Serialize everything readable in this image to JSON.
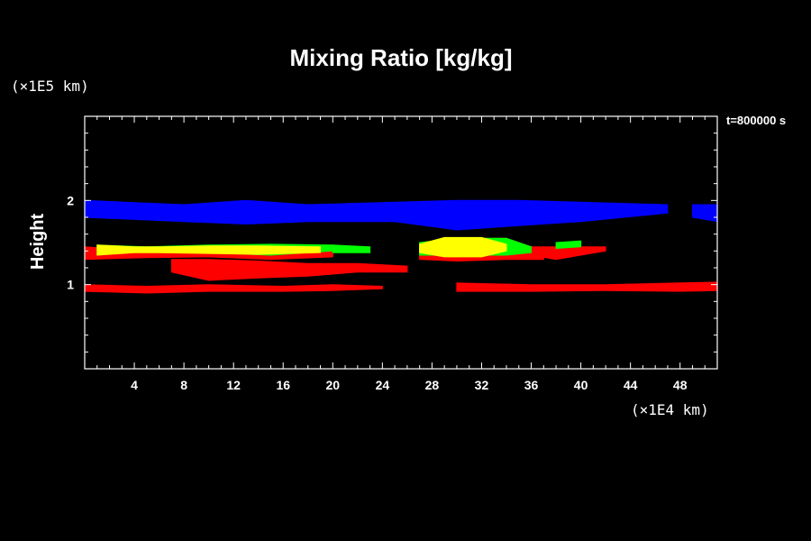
{
  "chart_data": {
    "type": "heatmap",
    "title": "Mixing Ratio [kg/kg]",
    "time_label": "t=800000 s",
    "ylabel": "Height",
    "y_unit": "(×1E5 km)",
    "x_unit": "(×1E4 km)",
    "xlim": [
      0,
      51
    ],
    "ylim": [
      0,
      3
    ],
    "x_ticks": [
      "4",
      "8",
      "12",
      "16",
      "20",
      "24",
      "28",
      "32",
      "36",
      "40",
      "44",
      "48"
    ],
    "y_ticks": [
      "1",
      "2"
    ],
    "colors": {
      "background": "#000000",
      "axes": "#ffffff",
      "blue": "#0000ff",
      "red": "#ff0000",
      "green": "#00ff00",
      "yellow": "#ffff00"
    },
    "series": [
      {
        "color": "blue",
        "regions": [
          {
            "x": [
              0,
              8,
              13,
              18,
              25,
              30,
              35,
              40,
              47
            ],
            "top": [
              2.0,
              1.95,
              2.0,
              1.95,
              1.98,
              2.0,
              2.0,
              1.98,
              1.95
            ],
            "bottom": [
              1.8,
              1.75,
              1.72,
              1.75,
              1.75,
              1.65,
              1.7,
              1.75,
              1.85
            ]
          },
          {
            "x": [
              49,
              51
            ],
            "top": [
              1.95,
              1.95
            ],
            "bottom": [
              1.8,
              1.75
            ]
          }
        ]
      },
      {
        "color": "red",
        "regions": [
          {
            "x": [
              0,
              5,
              10,
              16,
              20,
              24
            ],
            "top": [
              1.0,
              0.98,
              1.0,
              0.98,
              1.0,
              0.98
            ],
            "bottom": [
              0.92,
              0.9,
              0.92,
              0.92,
              0.93,
              0.95
            ]
          },
          {
            "x": [
              30,
              36,
              42,
              48,
              51
            ],
            "top": [
              1.02,
              1.0,
              1.0,
              1.02,
              1.03
            ],
            "bottom": [
              0.92,
              0.92,
              0.93,
              0.92,
              0.93
            ]
          },
          {
            "x": [
              7,
              10,
              14,
              18,
              22,
              26
            ],
            "top": [
              1.3,
              1.3,
              1.28,
              1.25,
              1.25,
              1.22
            ],
            "bottom": [
              1.15,
              1.05,
              1.08,
              1.1,
              1.15,
              1.15
            ]
          },
          {
            "x": [
              0,
              5,
              10,
              15,
              20
            ],
            "top": [
              1.45,
              1.4,
              1.42,
              1.42,
              1.45
            ],
            "bottom": [
              1.3,
              1.32,
              1.33,
              1.3,
              1.33
            ]
          },
          {
            "x": [
              27,
              30,
              34,
              37
            ],
            "top": [
              1.45,
              1.55,
              1.55,
              1.4
            ],
            "bottom": [
              1.3,
              1.28,
              1.3,
              1.3
            ]
          },
          {
            "x": [
              36,
              38,
              40,
              42
            ],
            "top": [
              1.45,
              1.45,
              1.45,
              1.45
            ],
            "bottom": [
              1.35,
              1.3,
              1.35,
              1.4
            ]
          }
        ]
      },
      {
        "color": "green",
        "regions": [
          {
            "x": [
              1,
              5,
              10,
              15,
              20
            ],
            "top": [
              1.47,
              1.45,
              1.47,
              1.48,
              1.47
            ],
            "bottom": [
              1.35,
              1.4,
              1.38,
              1.35,
              1.4
            ]
          },
          {
            "x": [
              20,
              23
            ],
            "top": [
              1.47,
              1.45
            ],
            "bottom": [
              1.38,
              1.38
            ]
          },
          {
            "x": [
              27,
              30,
              34,
              36
            ],
            "top": [
              1.5,
              1.55,
              1.55,
              1.45
            ],
            "bottom": [
              1.35,
              1.35,
              1.35,
              1.38
            ]
          },
          {
            "x": [
              38,
              40
            ],
            "top": [
              1.5,
              1.52
            ],
            "bottom": [
              1.43,
              1.45
            ]
          }
        ]
      },
      {
        "color": "yellow",
        "regions": [
          {
            "x": [
              1,
              4,
              6,
              10,
              14,
              19
            ],
            "top": [
              1.47,
              1.45,
              1.45,
              1.46,
              1.46,
              1.45
            ],
            "bottom": [
              1.35,
              1.38,
              1.38,
              1.37,
              1.36,
              1.38
            ]
          },
          {
            "x": [
              27,
              29,
              32,
              34
            ],
            "top": [
              1.48,
              1.56,
              1.56,
              1.48
            ],
            "bottom": [
              1.38,
              1.33,
              1.33,
              1.4
            ]
          }
        ]
      }
    ]
  }
}
